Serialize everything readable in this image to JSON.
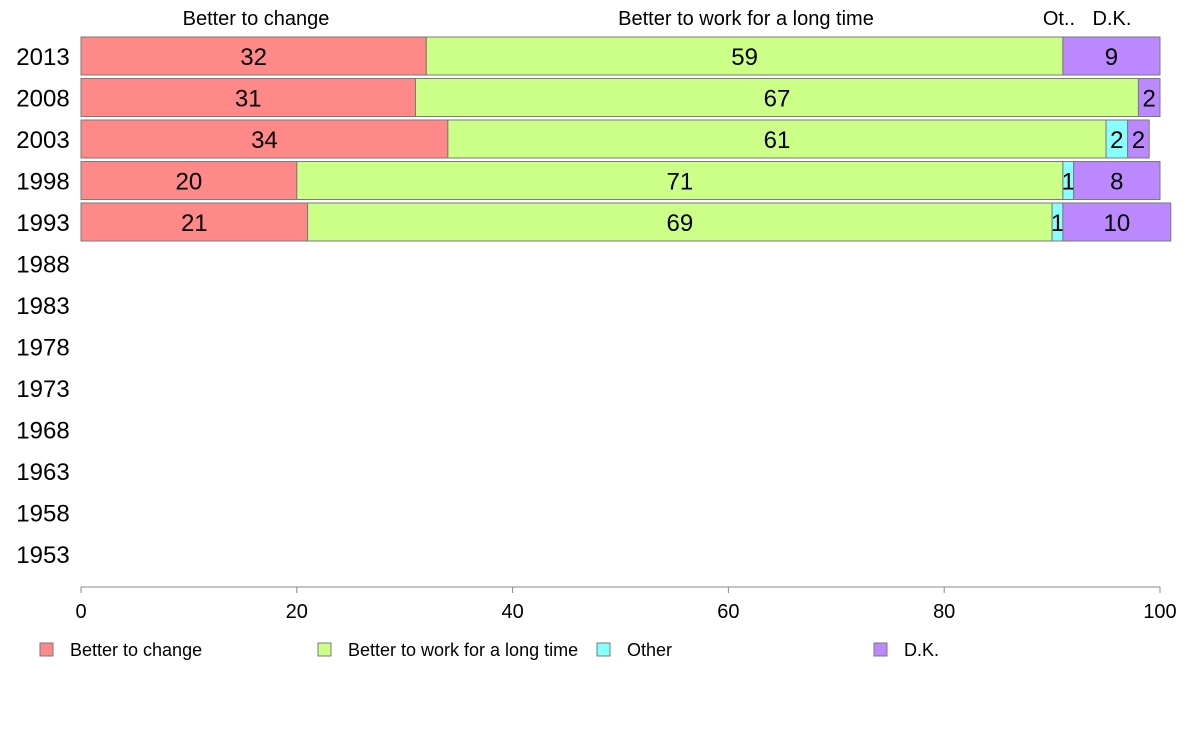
{
  "chart_data": {
    "type": "bar",
    "orientation": "horizontal",
    "stacked": true,
    "categories": [
      "2013",
      "2008",
      "2003",
      "1998",
      "1993",
      "1988",
      "1983",
      "1978",
      "1973",
      "1968",
      "1963",
      "1958",
      "1953"
    ],
    "series": [
      {
        "name": "Better to change",
        "color": "#ff8888",
        "values": [
          32,
          31,
          34,
          20,
          21,
          null,
          null,
          null,
          null,
          null,
          null,
          null,
          null
        ]
      },
      {
        "name": "Better to work for a long time",
        "color": "#ccff88",
        "values": [
          59,
          67,
          61,
          71,
          69,
          null,
          null,
          null,
          null,
          null,
          null,
          null,
          null
        ]
      },
      {
        "name": "Other",
        "color": "#88ffff",
        "values": [
          0,
          0,
          2,
          1,
          1,
          null,
          null,
          null,
          null,
          null,
          null,
          null,
          null
        ]
      },
      {
        "name": "D.K.",
        "color": "#bb88ff",
        "values": [
          9,
          2,
          2,
          8,
          10,
          null,
          null,
          null,
          null,
          null,
          null,
          null,
          null
        ]
      }
    ],
    "top_labels": [
      "Better to change",
      "Better to work for a long time",
      "Ot..",
      "D.K."
    ],
    "xlim": [
      0,
      100
    ],
    "x_ticks": [
      0,
      20,
      40,
      60,
      80,
      100
    ],
    "grid": false,
    "legend_position": "bottom"
  }
}
